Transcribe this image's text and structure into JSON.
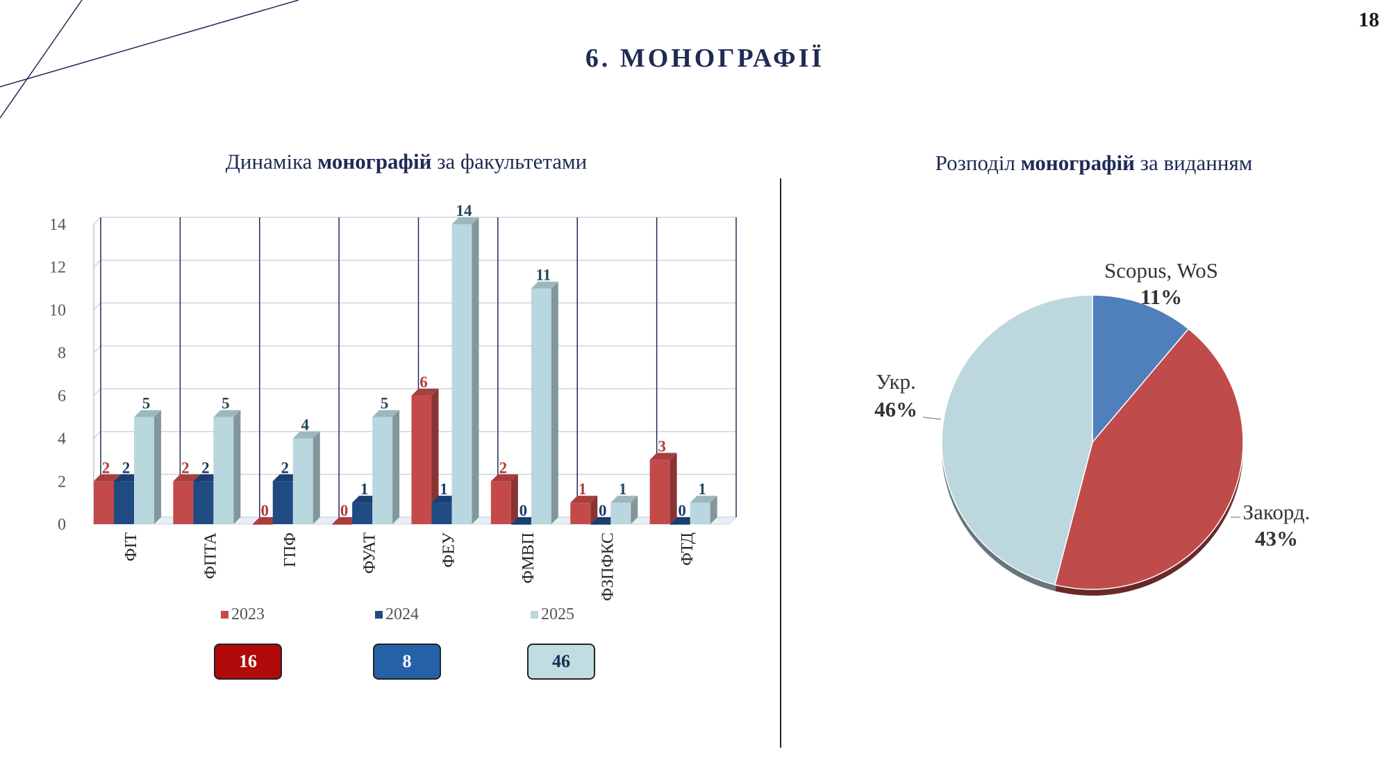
{
  "page_number": "18",
  "page_title": "6. МОНОГРАФІЇ",
  "bar_chart_title": {
    "pre": "Динаміка ",
    "bold": "монографій",
    "post": " за факультетами"
  },
  "pie_chart_title": {
    "pre": "Розподіл ",
    "bold": "монографій",
    "post": " за виданням"
  },
  "totals": [
    {
      "value": "16",
      "bg": "#b00a0a",
      "color": "#ffffff"
    },
    {
      "value": "8",
      "bg": "#2461a8",
      "color": "#ffffff"
    },
    {
      "value": "46",
      "bg": "#c0dde3",
      "color": "#1f2a55"
    }
  ],
  "colors": {
    "s2023": "#c44a4a",
    "s2024": "#1f4a82",
    "s2025": "#b9d7de",
    "label2023": "#b33a3a",
    "label2024": "#1f3a6e",
    "label2025": "#1f4a5a",
    "grid": "#c9d5e3",
    "scopus": "#4f80bc",
    "zakord": "#c04b4b",
    "ukr": "#bdd7de"
  },
  "chart_data": [
    {
      "type": "bar",
      "title": "Динаміка монографій за факультетами",
      "categories": [
        "ФІТ",
        "ФПТА",
        "ГПФ",
        "ФУАТ",
        "ФЕУ",
        "ФМВП",
        "ФЗПФКС",
        "ФТД"
      ],
      "series": [
        {
          "name": "2023",
          "values": [
            2,
            2,
            0,
            0,
            6,
            2,
            1,
            3
          ]
        },
        {
          "name": "2024",
          "values": [
            2,
            2,
            2,
            1,
            1,
            0,
            0,
            0
          ]
        },
        {
          "name": "2025",
          "values": [
            5,
            5,
            4,
            5,
            14,
            11,
            1,
            1
          ]
        }
      ],
      "ylim": [
        0,
        14
      ],
      "yticks": [
        0,
        2,
        4,
        6,
        8,
        10,
        12,
        14
      ],
      "grid": true,
      "legend": "bottom"
    },
    {
      "type": "pie",
      "title": "Розподіл монографій за виданням",
      "slices": [
        {
          "label": "Scopus, WoS",
          "percent": "11%",
          "value": 11
        },
        {
          "label": "Закорд.",
          "percent": "43%",
          "value": 43
        },
        {
          "label": "Укр.",
          "percent": "46%",
          "value": 46
        }
      ]
    }
  ]
}
